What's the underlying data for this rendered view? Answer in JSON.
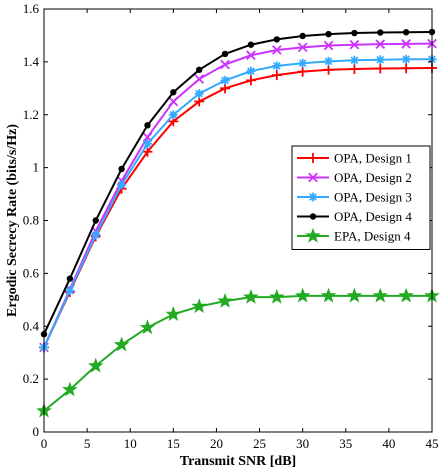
{
  "chart_data": {
    "type": "line",
    "xlabel": "Transmit SNR [dB]",
    "ylabel": "Ergodic Secrecy Rate (bits/s/Hz)",
    "xlim": [
      0,
      45
    ],
    "ylim": [
      0,
      1.6
    ],
    "xticks": [
      0,
      5,
      10,
      15,
      20,
      25,
      30,
      35,
      40,
      45
    ],
    "yticks": [
      0,
      0.2,
      0.4,
      0.6,
      0.8,
      1,
      1.2,
      1.4,
      1.6
    ],
    "grid": false,
    "legend_position": "right",
    "x": [
      0,
      3,
      6,
      9,
      12,
      15,
      18,
      21,
      24,
      27,
      30,
      33,
      36,
      39,
      42,
      45
    ],
    "series": [
      {
        "name": "OPA, Design 1",
        "color": "#ff0000",
        "marker": "plus",
        "values": [
          0.32,
          0.53,
          0.74,
          0.92,
          1.06,
          1.175,
          1.25,
          1.3,
          1.33,
          1.35,
          1.363,
          1.37,
          1.373,
          1.375,
          1.376,
          1.377
        ]
      },
      {
        "name": "OPA, Design 2",
        "color": "#cc33ff",
        "marker": "x",
        "values": [
          0.32,
          0.54,
          0.76,
          0.95,
          1.115,
          1.25,
          1.335,
          1.39,
          1.425,
          1.445,
          1.455,
          1.462,
          1.465,
          1.467,
          1.468,
          1.469
        ]
      },
      {
        "name": "OPA, Design 3",
        "color": "#33aaff",
        "marker": "star",
        "values": [
          0.32,
          0.535,
          0.745,
          0.935,
          1.09,
          1.2,
          1.28,
          1.33,
          1.365,
          1.385,
          1.395,
          1.402,
          1.406,
          1.408,
          1.41,
          1.41
        ]
      },
      {
        "name": "OPA, Design 4",
        "color": "#000000",
        "marker": "dot",
        "values": [
          0.37,
          0.58,
          0.8,
          0.995,
          1.16,
          1.285,
          1.37,
          1.43,
          1.465,
          1.485,
          1.498,
          1.505,
          1.509,
          1.511,
          1.512,
          1.513
        ]
      },
      {
        "name": "EPA, Design 4",
        "color": "#22aa22",
        "marker": "pentagram",
        "values": [
          0.08,
          0.16,
          0.25,
          0.33,
          0.395,
          0.445,
          0.475,
          0.495,
          0.51,
          0.51,
          0.515,
          0.515,
          0.515,
          0.515,
          0.515,
          0.515
        ]
      }
    ]
  }
}
